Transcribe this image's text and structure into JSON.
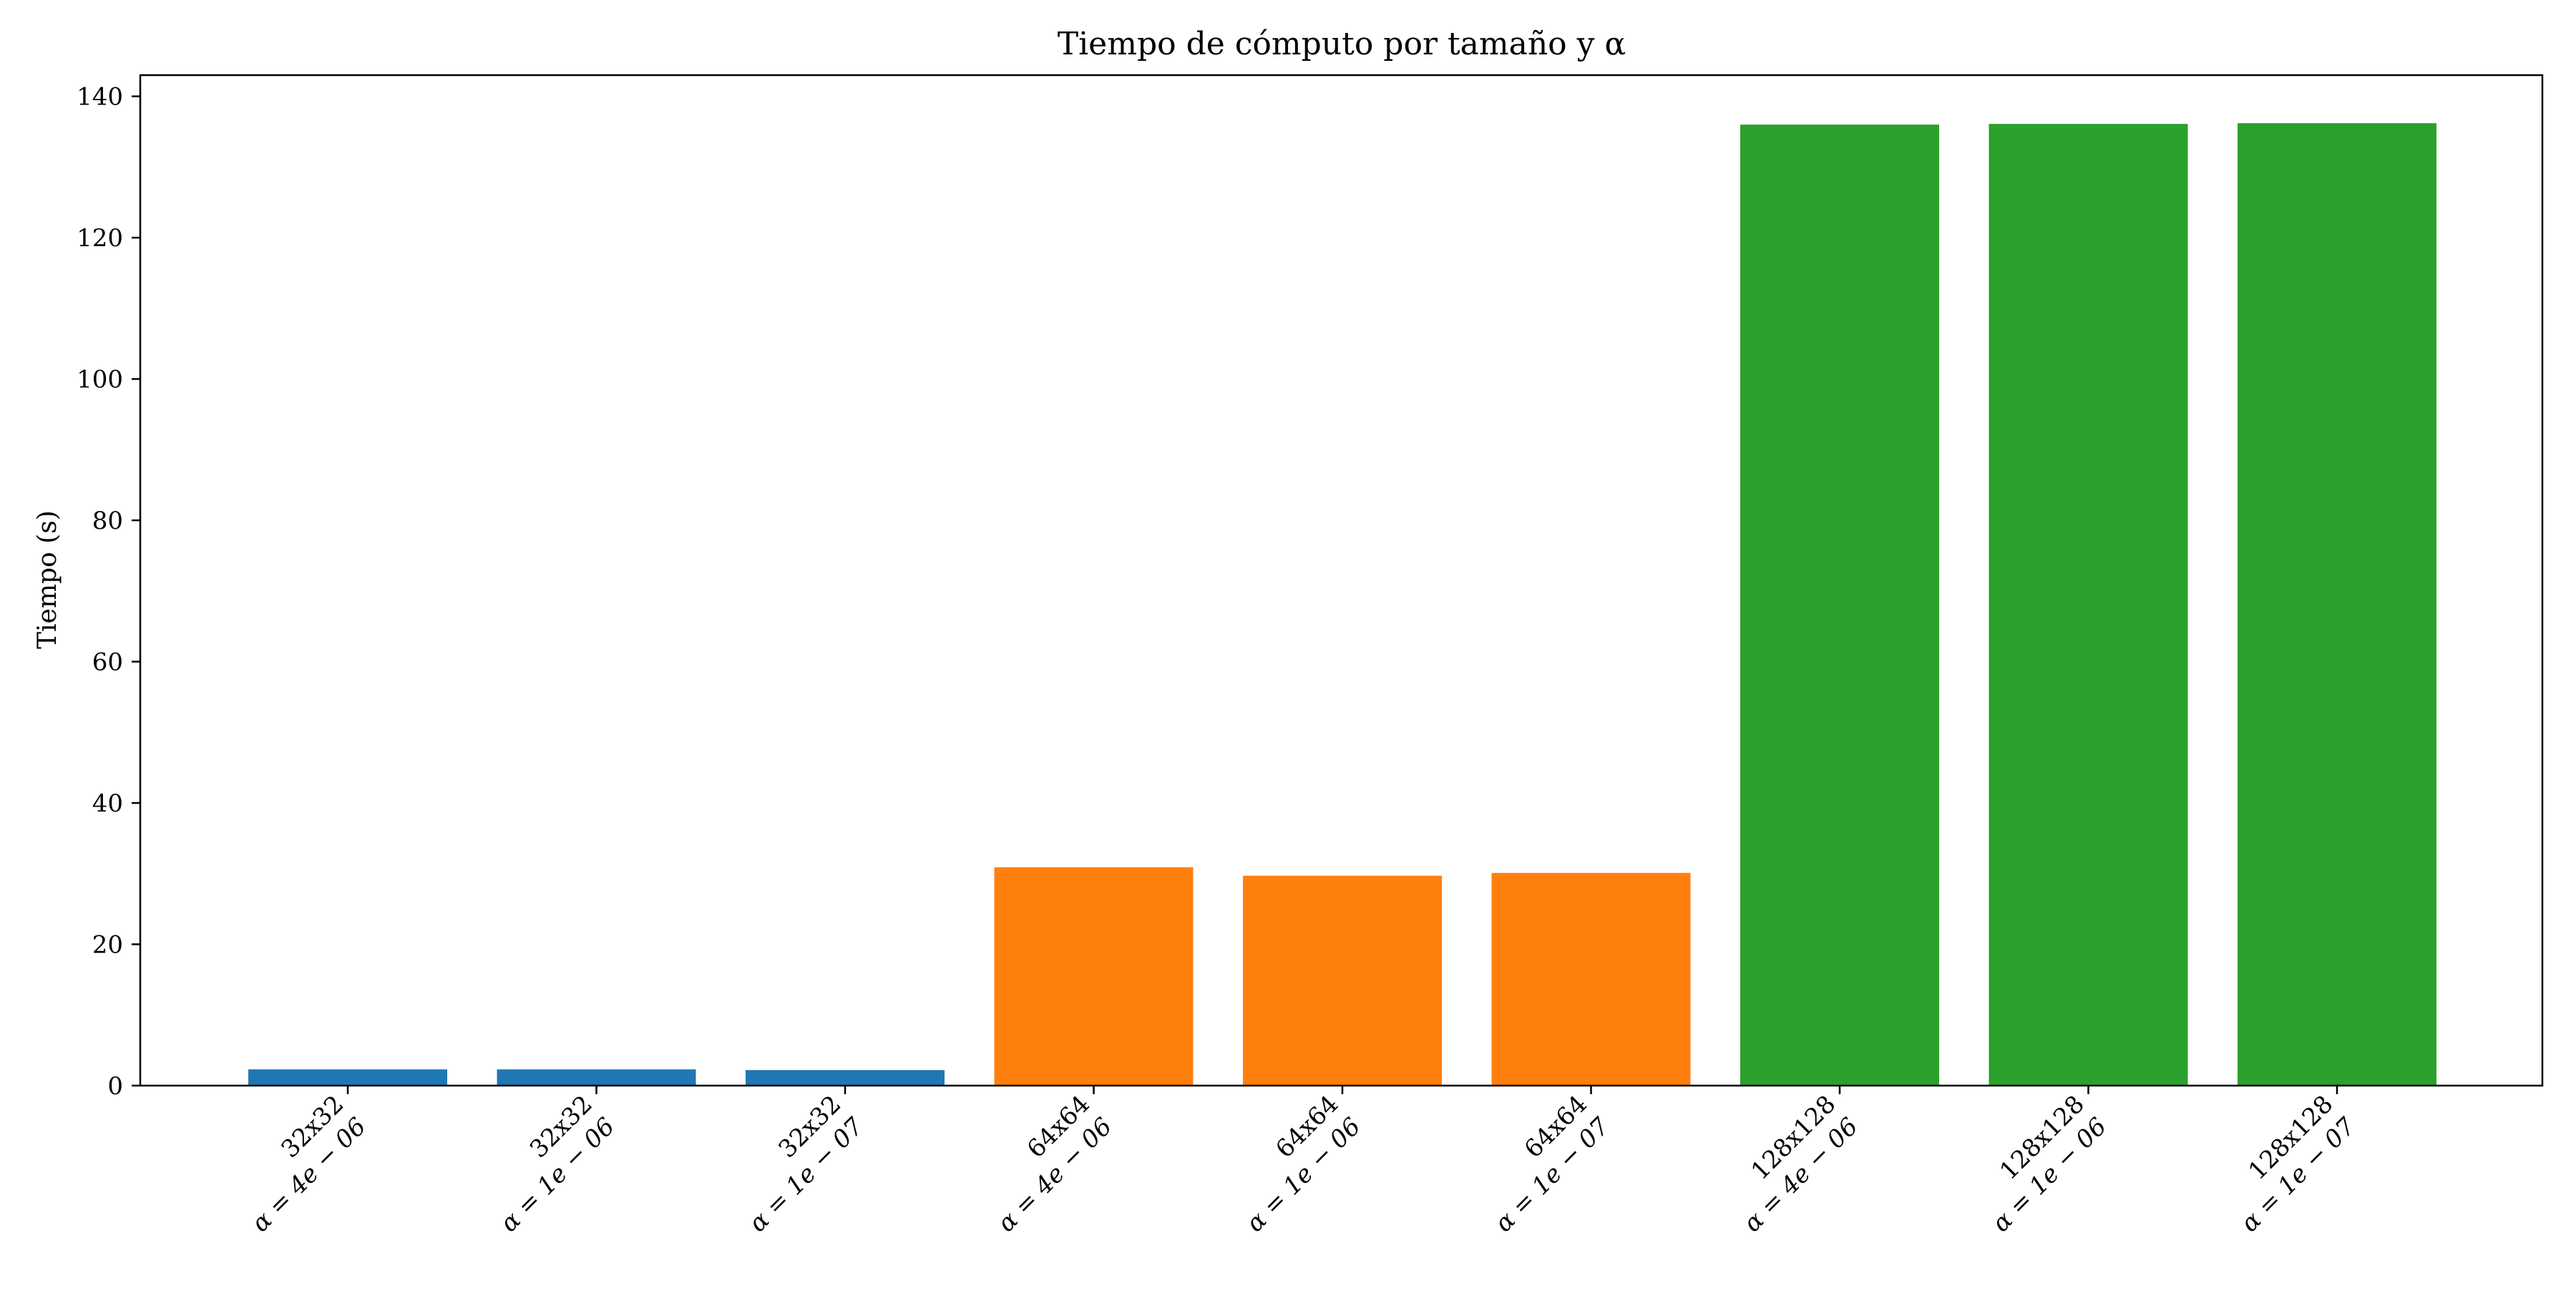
{
  "chart_data": {
    "type": "bar",
    "title": "Tiempo de cómputo por tamaño y α",
    "xlabel": "",
    "ylabel": "Tiempo (s)",
    "ylim": [
      0,
      143
    ],
    "yticks": [
      0,
      20,
      40,
      60,
      80,
      100,
      120,
      140
    ],
    "grid": false,
    "categories": [
      {
        "size": "32x32",
        "alpha": "α = 4e − 06"
      },
      {
        "size": "32x32",
        "alpha": "α = 1e − 06"
      },
      {
        "size": "32x32",
        "alpha": "α = 1e − 07"
      },
      {
        "size": "64x64",
        "alpha": "α = 4e − 06"
      },
      {
        "size": "64x64",
        "alpha": "α = 1e − 06"
      },
      {
        "size": "64x64",
        "alpha": "α = 1e − 07"
      },
      {
        "size": "128x128",
        "alpha": "α = 4e − 06"
      },
      {
        "size": "128x128",
        "alpha": "α = 1e − 06"
      },
      {
        "size": "128x128",
        "alpha": "α = 1e − 07"
      }
    ],
    "values": [
      2.3,
      2.3,
      2.2,
      30.9,
      29.7,
      30.1,
      136.0,
      136.1,
      136.2
    ],
    "bar_colors": [
      "#1f77b4",
      "#1f77b4",
      "#1f77b4",
      "#ff7f0e",
      "#ff7f0e",
      "#ff7f0e",
      "#2ca02c",
      "#2ca02c",
      "#2ca02c"
    ]
  }
}
